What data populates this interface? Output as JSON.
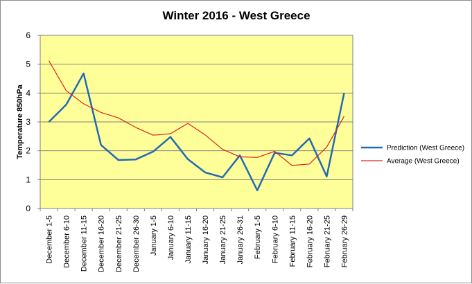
{
  "chart_data": {
    "type": "line",
    "title": "Winter 2016 - West Greece",
    "xlabel": "",
    "ylabel": "Temperature 850hPa",
    "ylim": [
      0,
      6
    ],
    "yticks": [
      "0",
      "1",
      "2",
      "3",
      "4",
      "5",
      "6"
    ],
    "grid": true,
    "legend_position": "right",
    "plot_background": "#FFFF99",
    "categories": [
      "December 1-5",
      "December 6-10",
      "December 11-15",
      "December 16-20",
      "December 21-25",
      "December 26-30",
      "January 1-5",
      "January 6-10",
      "January 11-15",
      "January 16-20",
      "January 21-25",
      "January 26-31",
      "February 1-5",
      "February 6-10",
      "February 11-15",
      "February 16-20",
      "February 21-25",
      "February 26-29"
    ],
    "series": [
      {
        "name": "Prediction (West Greece)",
        "color": "#1F6BB5",
        "values": [
          3.0,
          3.6,
          4.68,
          2.2,
          1.68,
          1.7,
          1.97,
          2.48,
          1.71,
          1.25,
          1.08,
          1.84,
          0.63,
          1.93,
          1.84,
          2.43,
          1.11,
          4.0
        ]
      },
      {
        "name": "Average (West Greece)",
        "color": "#E02020",
        "values": [
          5.12,
          4.08,
          3.63,
          3.33,
          3.14,
          2.81,
          2.54,
          2.59,
          2.95,
          2.55,
          2.05,
          1.79,
          1.77,
          1.98,
          1.49,
          1.54,
          2.13,
          3.2
        ]
      }
    ]
  }
}
